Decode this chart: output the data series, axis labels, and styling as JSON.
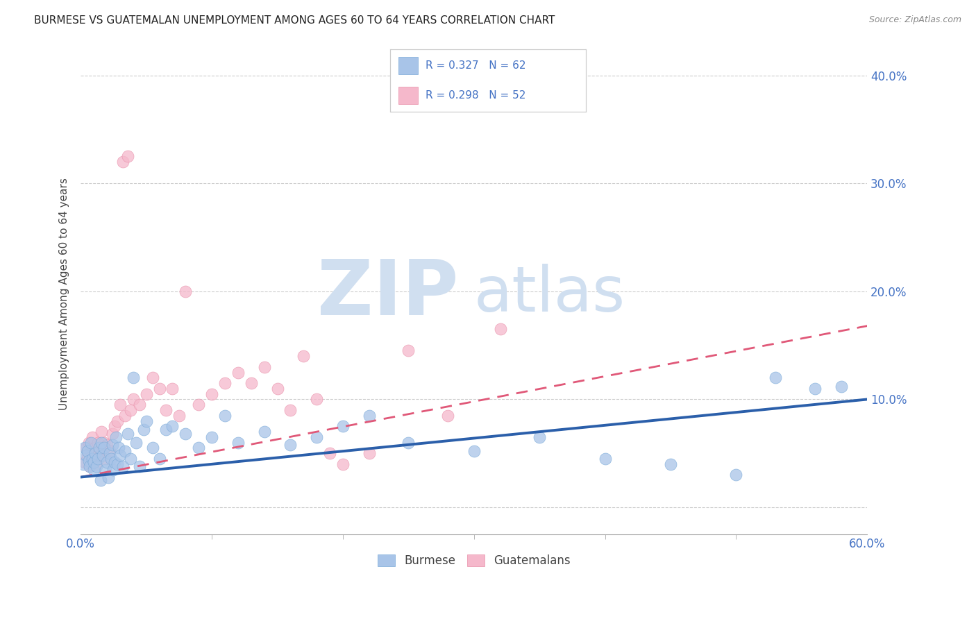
{
  "title": "BURMESE VS GUATEMALAN UNEMPLOYMENT AMONG AGES 60 TO 64 YEARS CORRELATION CHART",
  "source": "Source: ZipAtlas.com",
  "ylabel": "Unemployment Among Ages 60 to 64 years",
  "xmin": 0.0,
  "xmax": 0.6,
  "ymin": -0.025,
  "ymax": 0.42,
  "burmese_color": "#a8c4e8",
  "burmese_edge_color": "#7aaad8",
  "burmese_line_color": "#2b5faa",
  "guatemalan_color": "#f5b8cb",
  "guatemalan_edge_color": "#e890aa",
  "guatemalan_line_color": "#e05878",
  "legend_text_color": "#4472c4",
  "right_axis_color": "#4472c4",
  "x_label_color": "#4472c4",
  "grid_color": "#cccccc",
  "bg_color": "#ffffff",
  "title_color": "#222222",
  "watermark_color": "#d0dff0",
  "burmese_x": [
    0.002,
    0.003,
    0.004,
    0.005,
    0.006,
    0.007,
    0.008,
    0.009,
    0.01,
    0.01,
    0.011,
    0.012,
    0.013,
    0.014,
    0.015,
    0.016,
    0.017,
    0.018,
    0.019,
    0.02,
    0.021,
    0.022,
    0.023,
    0.024,
    0.025,
    0.026,
    0.027,
    0.028,
    0.029,
    0.03,
    0.032,
    0.034,
    0.036,
    0.038,
    0.04,
    0.042,
    0.045,
    0.048,
    0.05,
    0.055,
    0.06,
    0.065,
    0.07,
    0.08,
    0.09,
    0.1,
    0.11,
    0.12,
    0.14,
    0.16,
    0.18,
    0.2,
    0.22,
    0.25,
    0.3,
    0.35,
    0.4,
    0.45,
    0.5,
    0.53,
    0.56,
    0.58
  ],
  "burmese_y": [
    0.04,
    0.055,
    0.048,
    0.052,
    0.043,
    0.038,
    0.06,
    0.045,
    0.035,
    0.042,
    0.05,
    0.038,
    0.045,
    0.055,
    0.025,
    0.06,
    0.048,
    0.055,
    0.035,
    0.042,
    0.028,
    0.05,
    0.045,
    0.058,
    0.035,
    0.042,
    0.065,
    0.04,
    0.055,
    0.048,
    0.038,
    0.052,
    0.068,
    0.045,
    0.12,
    0.06,
    0.038,
    0.072,
    0.08,
    0.055,
    0.045,
    0.072,
    0.075,
    0.068,
    0.055,
    0.065,
    0.085,
    0.06,
    0.07,
    0.058,
    0.065,
    0.075,
    0.085,
    0.06,
    0.052,
    0.065,
    0.045,
    0.04,
    0.03,
    0.12,
    0.11,
    0.112
  ],
  "guatemalan_x": [
    0.003,
    0.004,
    0.005,
    0.006,
    0.007,
    0.008,
    0.009,
    0.01,
    0.011,
    0.012,
    0.013,
    0.014,
    0.015,
    0.016,
    0.017,
    0.018,
    0.019,
    0.02,
    0.022,
    0.024,
    0.026,
    0.028,
    0.03,
    0.032,
    0.034,
    0.036,
    0.038,
    0.04,
    0.045,
    0.05,
    0.055,
    0.06,
    0.065,
    0.07,
    0.075,
    0.08,
    0.09,
    0.1,
    0.11,
    0.12,
    0.13,
    0.14,
    0.15,
    0.16,
    0.17,
    0.18,
    0.19,
    0.2,
    0.22,
    0.25,
    0.28,
    0.32
  ],
  "guatemalan_y": [
    0.042,
    0.055,
    0.048,
    0.06,
    0.038,
    0.052,
    0.065,
    0.045,
    0.055,
    0.04,
    0.06,
    0.052,
    0.048,
    0.07,
    0.055,
    0.06,
    0.045,
    0.058,
    0.052,
    0.068,
    0.075,
    0.08,
    0.095,
    0.32,
    0.085,
    0.325,
    0.09,
    0.1,
    0.095,
    0.105,
    0.12,
    0.11,
    0.09,
    0.11,
    0.085,
    0.2,
    0.095,
    0.105,
    0.115,
    0.125,
    0.115,
    0.13,
    0.11,
    0.09,
    0.14,
    0.1,
    0.05,
    0.04,
    0.05,
    0.145,
    0.085,
    0.165
  ],
  "burmese_trend_x": [
    0.0,
    0.6
  ],
  "burmese_trend_y": [
    0.028,
    0.1
  ],
  "guatemalan_trend_x": [
    0.0,
    0.6
  ],
  "guatemalan_trend_y": [
    0.028,
    0.168
  ],
  "ytick_vals": [
    0.0,
    0.1,
    0.2,
    0.3,
    0.4
  ],
  "ytick_labels": [
    "",
    "10.0%",
    "20.0%",
    "30.0%",
    "40.0%"
  ],
  "xtick_labels_show": [
    "0.0%",
    "60.0%"
  ],
  "xtick_positions_minor": [
    0.1,
    0.2,
    0.3,
    0.4,
    0.5
  ]
}
